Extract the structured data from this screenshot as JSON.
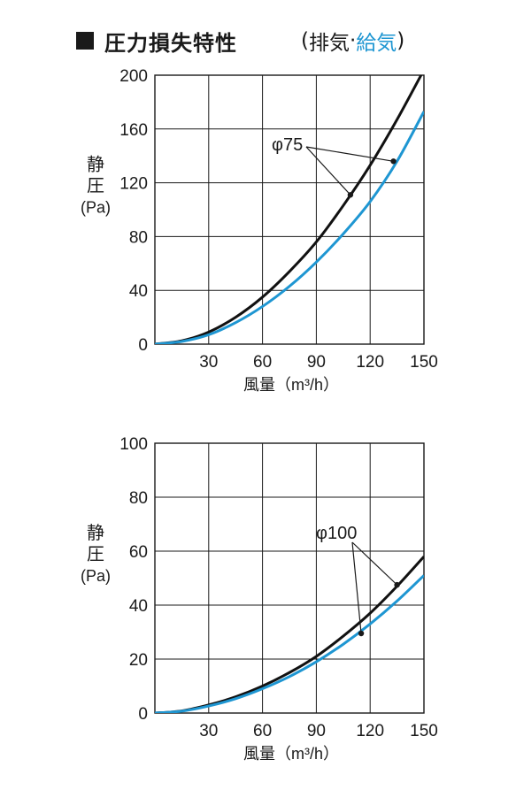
{
  "title": {
    "main": "圧力損失特性",
    "paren_open": "(",
    "exhaust": "排気",
    "separator": "·",
    "supply": "給気",
    "paren_close": ")"
  },
  "colors": {
    "exhaust": "#111111",
    "supply": "#1e96d2",
    "grid": "#1a1a1a"
  },
  "chart_data": [
    {
      "type": "line",
      "xlabel": "風量（m³/h）",
      "ylabel": [
        "静",
        "圧",
        "(Pa)"
      ],
      "xlim": [
        0,
        150
      ],
      "ylim": [
        0,
        200
      ],
      "xticks": [
        "30",
        "60",
        "90",
        "120",
        "150"
      ],
      "yticks": [
        "0",
        "40",
        "80",
        "120",
        "160",
        "200"
      ],
      "grid": true,
      "annotation": "φ75",
      "series": [
        {
          "key": "exhaust",
          "x": [
            0,
            15,
            30,
            45,
            60,
            75,
            90,
            105,
            120,
            135,
            150
          ],
          "y": [
            0,
            2.5,
            9,
            20,
            35,
            54,
            76,
            103,
            133,
            167,
            204
          ]
        },
        {
          "key": "supply",
          "x": [
            0,
            15,
            30,
            45,
            60,
            75,
            90,
            105,
            120,
            135,
            150
          ],
          "y": [
            0,
            2,
            7,
            16,
            28,
            43,
            61,
            82,
            106,
            136,
            173
          ]
        }
      ],
      "markers": [
        {
          "series": "exhaust",
          "x": 109,
          "y": 111
        },
        {
          "series": "supply",
          "x": 133,
          "y": 136
        }
      ]
    },
    {
      "type": "line",
      "xlabel": "風量（m³/h）",
      "ylabel": [
        "静",
        "圧",
        "(Pa)"
      ],
      "xlim": [
        0,
        150
      ],
      "ylim": [
        0,
        100
      ],
      "xticks": [
        "30",
        "60",
        "90",
        "120",
        "150"
      ],
      "yticks": [
        "0",
        "20",
        "40",
        "60",
        "80",
        "100"
      ],
      "grid": true,
      "annotation": "φ100",
      "series": [
        {
          "key": "exhaust",
          "x": [
            0,
            15,
            30,
            45,
            60,
            75,
            90,
            105,
            120,
            135,
            150
          ],
          "y": [
            0,
            0.8,
            3,
            6,
            10,
            15,
            21,
            28.5,
            37,
            47,
            58
          ]
        },
        {
          "key": "supply",
          "x": [
            0,
            15,
            30,
            45,
            60,
            75,
            90,
            105,
            120,
            135,
            150
          ],
          "y": [
            0,
            0.7,
            2.6,
            5.3,
            9,
            13.5,
            19,
            25.5,
            33,
            41.5,
            51
          ]
        }
      ],
      "markers": [
        {
          "series": "exhaust",
          "x": 135,
          "y": 47.5
        },
        {
          "series": "supply",
          "x": 115,
          "y": 29.5
        }
      ]
    }
  ]
}
